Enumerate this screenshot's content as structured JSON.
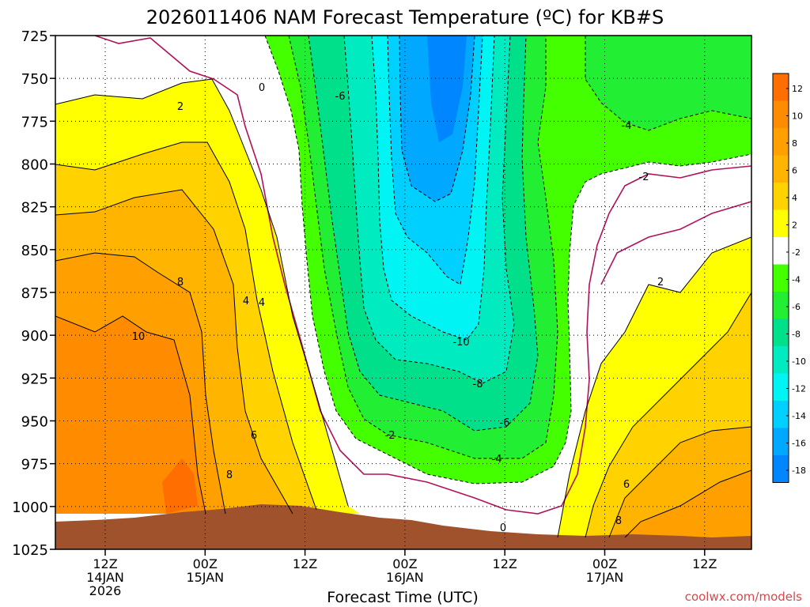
{
  "chart_data": {
    "type": "heatmap",
    "title": "2026011406 NAM Forecast Temperature (ºC) for KB#S",
    "xlabel": "Forecast Time (UTC)",
    "ylabel": "",
    "y_axis": {
      "ticks": [
        "725",
        "750",
        "775",
        "800",
        "825",
        "850",
        "875",
        "900",
        "925",
        "950",
        "975",
        "1000",
        "1025"
      ],
      "range": [
        725,
        1025
      ],
      "scale": "pressure (inverted)"
    },
    "x_axis": {
      "ticks": [
        {
          "line1": "12Z",
          "line2": "14JAN",
          "line3": "2026"
        },
        {
          "line1": "00Z",
          "line2": "15JAN",
          "line3": ""
        },
        {
          "line1": "12Z",
          "line2": "",
          "line3": ""
        },
        {
          "line1": "00Z",
          "line2": "16JAN",
          "line3": ""
        },
        {
          "line1": "12Z",
          "line2": "",
          "line3": ""
        },
        {
          "line1": "00Z",
          "line2": "17JAN",
          "line3": ""
        },
        {
          "line1": "12Z",
          "line2": "",
          "line3": ""
        }
      ]
    },
    "grid": "dotted",
    "colorbar": {
      "labels": [
        "12",
        "10",
        "8",
        "6",
        "4",
        "2",
        "-2",
        "-4",
        "-6",
        "-8",
        "-10",
        "-12",
        "-14",
        "-16",
        "-18"
      ],
      "colors": [
        "#ff6e00",
        "#ff8c00",
        "#ffa000",
        "#ffb400",
        "#ffd200",
        "#ffff00",
        "#ffffff",
        "#44ff00",
        "#22ee33",
        "#00e08a",
        "#00ecc0",
        "#00f4f4",
        "#00d0ff",
        "#00a8ff",
        "#0086ff"
      ]
    },
    "contour_labels": [
      {
        "text": "0"
      },
      {
        "text": "2"
      },
      {
        "text": "-6"
      },
      {
        "text": "8"
      },
      {
        "text": "4"
      },
      {
        "text": "4"
      },
      {
        "text": "10"
      },
      {
        "text": "6"
      },
      {
        "text": "8"
      },
      {
        "text": "-2"
      },
      {
        "text": "-10"
      },
      {
        "text": "-8"
      },
      {
        "text": "-6"
      },
      {
        "text": "-4"
      },
      {
        "text": "0"
      },
      {
        "text": "-4"
      },
      {
        "text": "-2"
      },
      {
        "text": "2"
      },
      {
        "text": "6"
      },
      {
        "text": "8"
      }
    ],
    "surface_color": "#a0522d"
  },
  "credit": "coolwx.com/models"
}
